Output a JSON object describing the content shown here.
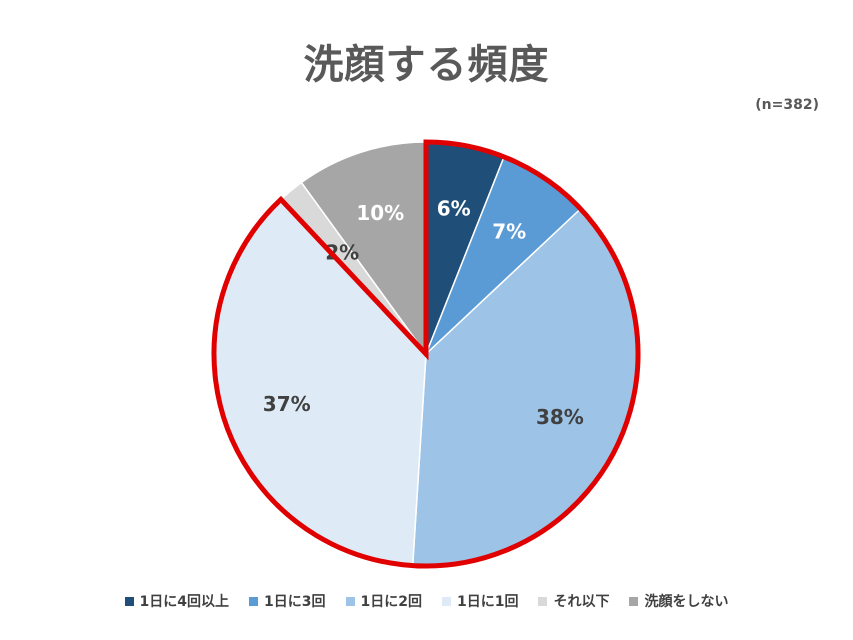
{
  "chart_data": {
    "type": "pie",
    "title": "洗顔する頻度",
    "note": "(n=382)",
    "slices": [
      {
        "label": "1日に4回以上",
        "value": 6,
        "value_label": "6%",
        "color": "#1f4e79",
        "text_color": "#ffffff"
      },
      {
        "label": "1日に3回",
        "value": 7,
        "value_label": "7%",
        "color": "#5b9bd5",
        "text_color": "#ffffff"
      },
      {
        "label": "1日に2回",
        "value": 38,
        "value_label": "38%",
        "color": "#9dc3e6",
        "text_color": "#404040"
      },
      {
        "label": "1日に1回",
        "value": 37,
        "value_label": "37%",
        "color": "#deebf7",
        "text_color": "#404040"
      },
      {
        "label": "それ以下",
        "value": 2,
        "value_label": "2%",
        "color": "#d9d9d9",
        "text_color": "#404040"
      },
      {
        "label": "洗顔をしない",
        "value": 10,
        "value_label": "10%",
        "color": "#a6a6a6",
        "text_color": "#ffffff"
      }
    ],
    "highlight": {
      "slices": [
        "1日に4回以上",
        "1日に3回",
        "1日に2回",
        "1日に1回"
      ],
      "color": "#e00000"
    },
    "legend_position": "bottom"
  }
}
